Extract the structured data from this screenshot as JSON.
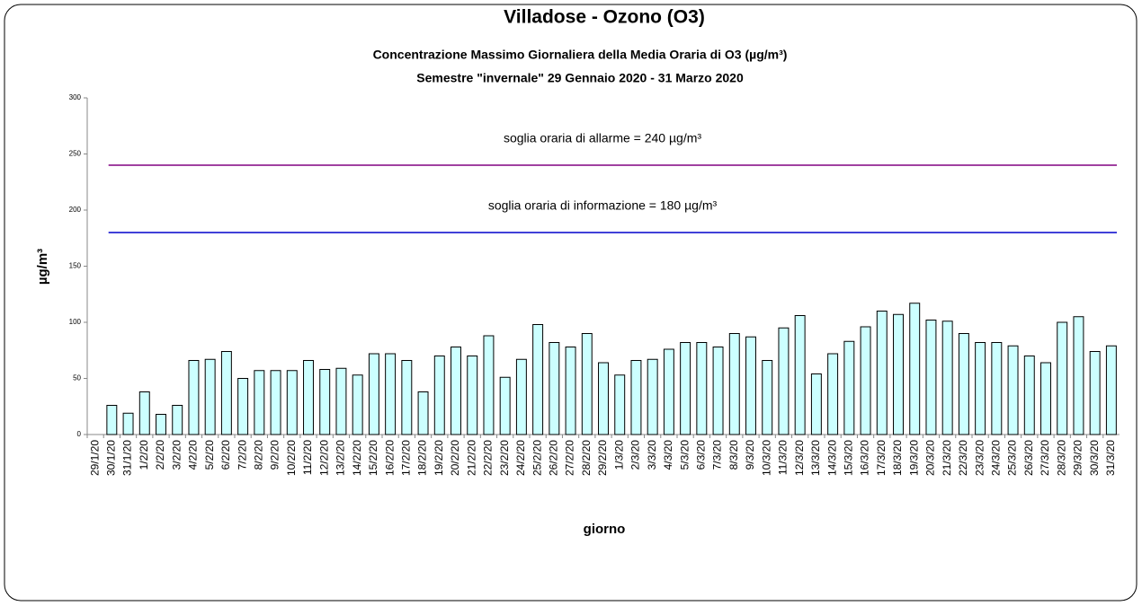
{
  "chart_data": {
    "type": "bar",
    "title": "Villadose - Ozono (O3)",
    "subtitle": [
      "Concentrazione  Massimo Giornaliera della Media Oraria di O3 (µg/m³)",
      "Semestre \"invernale\" 29 Gennaio 2020 - 31 Marzo 2020"
    ],
    "x_label": "giorno",
    "y_label": "µg/m³",
    "categories": [
      "29/1/20",
      "30/1/20",
      "31/1/20",
      "1/2/20",
      "2/2/20",
      "3/2/20",
      "4/2/20",
      "5/2/20",
      "6/2/20",
      "7/2/20",
      "8/2/20",
      "9/2/20",
      "10/2/20",
      "11/2/20",
      "12/2/20",
      "13/2/20",
      "14/2/20",
      "15/2/20",
      "16/2/20",
      "17/2/20",
      "18/2/20",
      "19/2/20",
      "20/2/20",
      "21/2/20",
      "22/2/20",
      "23/2/20",
      "24/2/20",
      "25/2/20",
      "26/2/20",
      "27/2/20",
      "28/2/20",
      "29/2/20",
      "1/3/20",
      "2/3/20",
      "3/3/20",
      "4/3/20",
      "5/3/20",
      "6/3/20",
      "7/3/20",
      "8/3/20",
      "9/3/20",
      "10/3/20",
      "11/3/20",
      "12/3/20",
      "13/3/20",
      "14/3/20",
      "15/3/20",
      "16/3/20",
      "17/3/20",
      "18/3/20",
      "19/3/20",
      "20/3/20",
      "21/3/20",
      "22/3/20",
      "23/3/20",
      "24/3/20",
      "25/3/20",
      "26/3/20",
      "27/3/20",
      "28/3/20",
      "29/3/20",
      "30/3/20",
      "31/3/20"
    ],
    "values": [
      null,
      26,
      19,
      38,
      18,
      26,
      66,
      67,
      74,
      50,
      57,
      57,
      57,
      66,
      58,
      59,
      53,
      72,
      72,
      66,
      38,
      70,
      78,
      70,
      88,
      51,
      67,
      98,
      82,
      78,
      90,
      64,
      53,
      66,
      67,
      76,
      82,
      82,
      78,
      90,
      87,
      66,
      95,
      106,
      54,
      72,
      83,
      96,
      110,
      107,
      117,
      102,
      101,
      90,
      82,
      82,
      79,
      70,
      64,
      100,
      105,
      74,
      79
    ],
    "color": "#ccffff",
    "ylim": [
      0,
      300
    ],
    "yticks": [
      0,
      50,
      100,
      150,
      200,
      250,
      300
    ],
    "thresholds": [
      {
        "value": 240,
        "label": "soglia oraria di allarme = 240 µg/m³",
        "color": "#800080"
      },
      {
        "value": 180,
        "label": "soglia oraria di informazione = 180 µg/m³",
        "color": "#0000cc"
      }
    ]
  }
}
